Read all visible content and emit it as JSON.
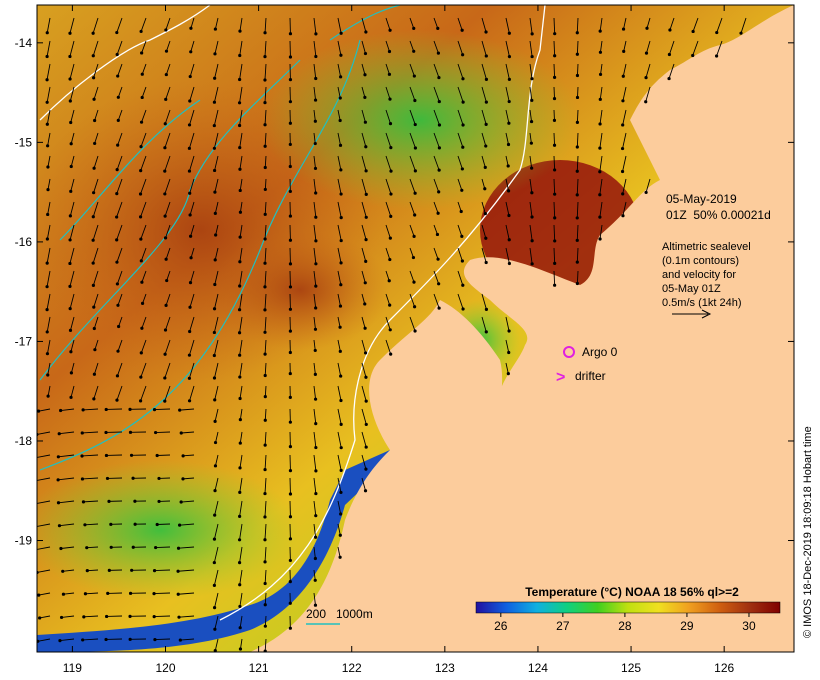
{
  "axes": {
    "lon_ticks": [
      "119",
      "120",
      "121",
      "122",
      "123",
      "124",
      "125",
      "126"
    ],
    "lat_ticks": [
      "-14",
      "-15",
      "-16",
      "-17",
      "-18",
      "-19"
    ],
    "lon_range": [
      118.62,
      126.75
    ],
    "lat_range": [
      -20.12,
      -13.62
    ]
  },
  "info": {
    "date": "05-May-2019",
    "time_line": "01Z  50% 0.00021d",
    "alt_lines": [
      "Altimetric sealevel",
      "(0.1m contours)",
      "and velocity for",
      "05-May 01Z",
      "0.5m/s (1kt 24h)"
    ]
  },
  "legend": {
    "argo_label": "Argo 0",
    "drifter_label": "drifter",
    "argo_color": "#e020e0",
    "drifter_color": "#e020e0"
  },
  "depth_scale": {
    "label_200": "200",
    "label_1000": "1000m",
    "color": "#20c0c0"
  },
  "colorbar": {
    "title": "Temperature (°C) NOAA 18 56% ql>=2",
    "ticks": [
      "26",
      "27",
      "28",
      "29",
      "30"
    ],
    "tick_values": [
      26,
      27,
      28,
      29,
      30
    ],
    "range": [
      25.6,
      30.5
    ],
    "colors": [
      "#2010a0",
      "#1060e0",
      "#10b0e0",
      "#10d080",
      "#40d020",
      "#c0e010",
      "#f0e020",
      "#f0a020",
      "#d06010",
      "#a03010",
      "#800000"
    ]
  },
  "credit": "© IMOS 18-Dec-2019 18:09:18 Hobart time",
  "colors": {
    "land": "#fccc9c",
    "contour": "#20c0c0",
    "isobath_200": "#ffffff",
    "arrow": "#000000"
  }
}
